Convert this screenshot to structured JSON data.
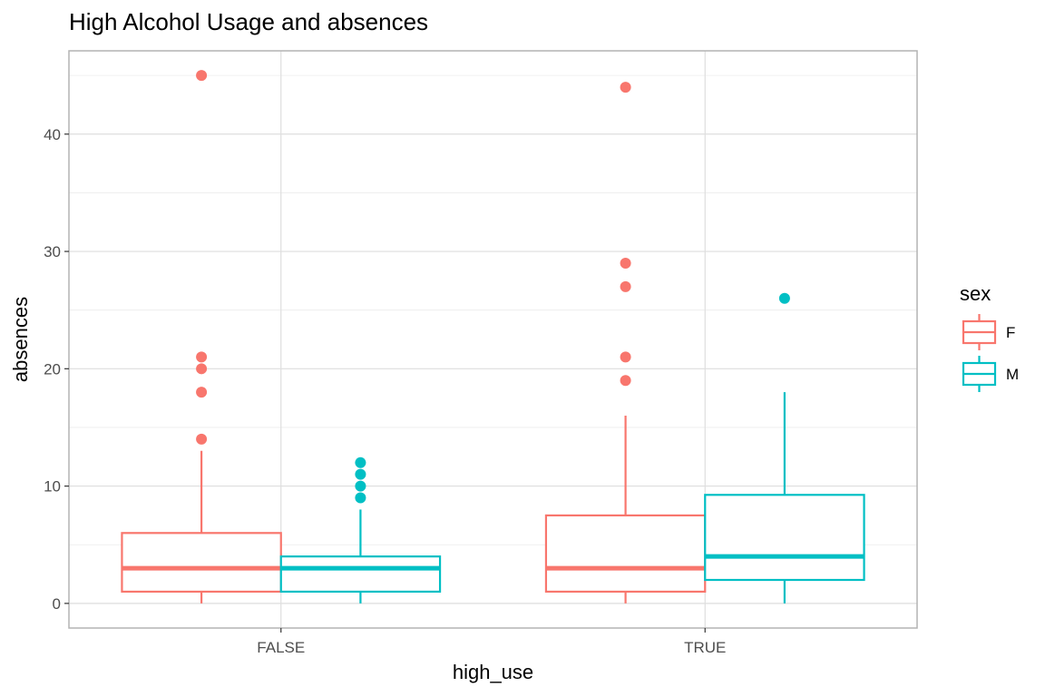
{
  "chart_data": {
    "type": "boxplot",
    "title": "High Alcohol Usage and absences",
    "xlabel": "high_use",
    "ylabel": "absences",
    "categories": [
      "FALSE",
      "TRUE"
    ],
    "y_ticks": [
      0,
      10,
      20,
      30,
      40
    ],
    "y_tick_labels": [
      "0",
      "10",
      "20",
      "30",
      "40"
    ],
    "ylim": [
      -2.1,
      47.1
    ],
    "grid": true,
    "legend": {
      "title": "sex",
      "position": "right",
      "entries": [
        "F",
        "M"
      ]
    },
    "series": [
      {
        "name": "F",
        "color": "#f8766d",
        "boxes": [
          {
            "category": "FALSE",
            "min": 0,
            "q1": 1,
            "median": 3,
            "q3": 6,
            "max": 13,
            "outliers": [
              14,
              18,
              20,
              21,
              45
            ]
          },
          {
            "category": "TRUE",
            "min": 0,
            "q1": 1,
            "median": 3,
            "q3": 7.5,
            "max": 16,
            "outliers": [
              19,
              21,
              27,
              29,
              44
            ]
          }
        ]
      },
      {
        "name": "M",
        "color": "#00bfc4",
        "boxes": [
          {
            "category": "FALSE",
            "min": 0,
            "q1": 1,
            "median": 3,
            "q3": 4,
            "max": 8,
            "outliers": [
              9,
              10,
              11,
              12
            ]
          },
          {
            "category": "TRUE",
            "min": 0,
            "q1": 2,
            "median": 4,
            "q3": 9.25,
            "max": 18,
            "outliers": [
              26
            ]
          }
        ]
      }
    ]
  }
}
